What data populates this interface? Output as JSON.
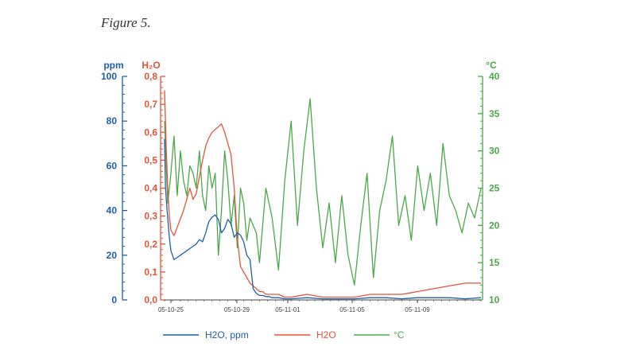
{
  "caption": "Figure 5.",
  "colors": {
    "ppm": "#1f5fa8",
    "h2o": "#e0553a",
    "temp": "#4aa84a",
    "axis_x": "#444444"
  },
  "chart_data": {
    "type": "line",
    "x_ticks": [
      "05-10-25",
      "05-10-29",
      "05-11-01",
      "05-11-05",
      "05-11-09"
    ],
    "axes": {
      "ppm": {
        "unit": "ppm",
        "ylim": [
          0,
          100
        ],
        "ticks": [
          "0",
          "20",
          "40",
          "60",
          "80",
          "100"
        ]
      },
      "h2o": {
        "unit": "H₂O",
        "ylim": [
          0,
          0.8
        ],
        "ticks": [
          "0,0",
          "0,1",
          "0,2",
          "0,3",
          "0,4",
          "0,5",
          "0,6",
          "0,7",
          "0,8"
        ]
      },
      "temp": {
        "unit": "°C",
        "ylim": [
          10,
          40
        ],
        "ticks": [
          "10",
          "15",
          "20",
          "25",
          "30",
          "35",
          "40"
        ]
      }
    },
    "legend": [
      "H2O, ppm",
      "H2O",
      "°C"
    ],
    "series": [
      {
        "name": "H2O, ppm",
        "axis": "ppm",
        "x": [
          0,
          0.3,
          0.8,
          1.5,
          2,
          3,
          4,
          5,
          6,
          7,
          8,
          9,
          10,
          11,
          12,
          13,
          14,
          15,
          16,
          17,
          18,
          19,
          20,
          21,
          22,
          23,
          24,
          25,
          26,
          27,
          28,
          29,
          30,
          31,
          32,
          33,
          34,
          36,
          38,
          40,
          45,
          50,
          55,
          60,
          65,
          70,
          75,
          80,
          85,
          90,
          95,
          100
        ],
        "y": [
          72,
          50,
          40,
          28,
          22,
          18,
          19,
          20,
          21,
          22,
          23,
          24,
          25,
          27,
          26,
          30,
          35,
          37,
          38,
          36,
          30,
          32,
          36,
          34,
          28,
          30,
          29,
          26,
          20,
          18,
          5,
          3,
          2,
          2,
          1.5,
          1.5,
          1,
          1,
          0.5,
          0.5,
          1,
          0.5,
          0.5,
          0.5,
          1,
          1,
          0.5,
          1,
          1,
          1,
          0.5,
          1
        ]
      },
      {
        "name": "H2O",
        "axis": "h2o",
        "x": [
          0,
          0.5,
          1,
          1.5,
          2,
          3,
          4,
          5,
          6,
          7,
          8,
          9,
          10,
          11,
          12,
          13,
          14,
          15,
          16,
          17,
          18,
          19,
          20,
          21,
          22,
          23,
          24,
          25,
          26,
          27,
          28,
          29,
          30,
          31,
          32,
          33,
          34,
          36,
          38,
          40,
          45,
          50,
          55,
          60,
          65,
          70,
          75,
          80,
          85,
          90,
          95,
          100
        ],
        "y": [
          0.75,
          0.55,
          0.4,
          0.3,
          0.25,
          0.23,
          0.26,
          0.29,
          0.32,
          0.36,
          0.4,
          0.36,
          0.38,
          0.44,
          0.5,
          0.55,
          0.58,
          0.6,
          0.61,
          0.62,
          0.63,
          0.6,
          0.56,
          0.52,
          0.4,
          0.22,
          0.12,
          0.1,
          0.08,
          0.06,
          0.05,
          0.04,
          0.03,
          0.03,
          0.02,
          0.02,
          0.02,
          0.02,
          0.01,
          0.01,
          0.02,
          0.01,
          0.01,
          0.01,
          0.02,
          0.02,
          0.02,
          0.03,
          0.04,
          0.05,
          0.06,
          0.06
        ]
      },
      {
        "name": "°C",
        "axis": "temp",
        "x": [
          0,
          1,
          2,
          3,
          4,
          5,
          6,
          7,
          8,
          9,
          10,
          11,
          12,
          13,
          14,
          15,
          16,
          17,
          18,
          19,
          20,
          21,
          22,
          23,
          24,
          25,
          26,
          27,
          28,
          29,
          30,
          32,
          34,
          36,
          38,
          40,
          42,
          44,
          46,
          48,
          50,
          52,
          54,
          56,
          58,
          60,
          62,
          64,
          66,
          68,
          70,
          72,
          74,
          76,
          78,
          80,
          82,
          84,
          86,
          88,
          90,
          92,
          94,
          96,
          98,
          100
        ],
        "y": [
          34,
          23,
          27,
          32,
          24,
          30,
          26,
          24,
          28,
          27,
          25,
          30,
          24,
          22,
          28,
          25,
          27,
          16,
          22,
          30,
          26,
          20,
          24,
          17,
          25,
          23,
          18,
          21,
          20,
          19,
          15,
          25,
          21,
          14,
          26,
          34,
          20,
          30,
          37,
          25,
          17,
          23,
          15,
          24,
          16,
          12,
          20,
          27,
          13,
          22,
          26,
          32,
          20,
          24,
          18,
          28,
          22,
          27,
          20,
          31,
          24,
          22,
          19,
          23,
          21,
          25
        ]
      }
    ]
  }
}
